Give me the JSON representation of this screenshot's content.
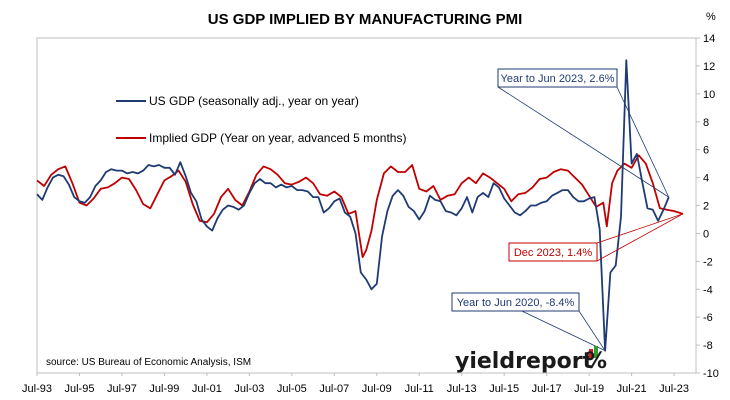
{
  "chart_data": {
    "type": "line",
    "title": "US GDP IMPLIED BY MANUFACTURING PMI",
    "y_unit": "%",
    "ylim": [
      -10,
      14
    ],
    "yticks": [
      14,
      12,
      10,
      8,
      6,
      4,
      2,
      0,
      -2,
      -4,
      -6,
      -8,
      -10
    ],
    "xlim": [
      "1993-07",
      "2024-04"
    ],
    "xticks": [
      "Jul-93",
      "Jul-95",
      "Jul-97",
      "Jul-99",
      "Jul-01",
      "Jul-03",
      "Jul-05",
      "Jul-07",
      "Jul-09",
      "Jul-11",
      "Jul-13",
      "Jul-15",
      "Jul-17",
      "Jul-19",
      "Jul-21",
      "Jul-23"
    ],
    "grid": false,
    "legend_position": "top-left",
    "series": [
      {
        "name": "US GDP (seasonally adj., year on year)",
        "color": "#1f3b73",
        "points": [
          [
            "1993-07",
            2.8
          ],
          [
            "1993-10",
            2.4
          ],
          [
            "1994-01",
            3.3
          ],
          [
            "1994-04",
            4.0
          ],
          [
            "1994-07",
            4.2
          ],
          [
            "1994-10",
            4.1
          ],
          [
            "1995-01",
            3.5
          ],
          [
            "1995-04",
            2.6
          ],
          [
            "1995-07",
            2.3
          ],
          [
            "1995-10",
            2.2
          ],
          [
            "1996-01",
            2.6
          ],
          [
            "1996-04",
            3.4
          ],
          [
            "1996-07",
            3.8
          ],
          [
            "1996-10",
            4.4
          ],
          [
            "1997-01",
            4.6
          ],
          [
            "1997-04",
            4.5
          ],
          [
            "1997-07",
            4.5
          ],
          [
            "1997-10",
            4.3
          ],
          [
            "1998-01",
            4.4
          ],
          [
            "1998-04",
            4.3
          ],
          [
            "1998-07",
            4.5
          ],
          [
            "1998-10",
            4.9
          ],
          [
            "1999-01",
            4.8
          ],
          [
            "1999-04",
            4.9
          ],
          [
            "1999-07",
            4.7
          ],
          [
            "1999-10",
            4.7
          ],
          [
            "2000-01",
            4.2
          ],
          [
            "2000-04",
            5.1
          ],
          [
            "2000-07",
            4.1
          ],
          [
            "2000-10",
            2.9
          ],
          [
            "2001-01",
            2.3
          ],
          [
            "2001-04",
            1.0
          ],
          [
            "2001-07",
            0.5
          ],
          [
            "2001-10",
            0.2
          ],
          [
            "2002-01",
            1.1
          ],
          [
            "2002-04",
            1.7
          ],
          [
            "2002-07",
            2.0
          ],
          [
            "2002-10",
            1.9
          ],
          [
            "2003-01",
            1.7
          ],
          [
            "2003-04",
            2.0
          ],
          [
            "2003-07",
            2.9
          ],
          [
            "2003-10",
            3.6
          ],
          [
            "2004-01",
            3.9
          ],
          [
            "2004-04",
            3.6
          ],
          [
            "2004-07",
            3.6
          ],
          [
            "2004-10",
            3.3
          ],
          [
            "2005-01",
            3.5
          ],
          [
            "2005-04",
            3.3
          ],
          [
            "2005-07",
            3.4
          ],
          [
            "2005-10",
            3.1
          ],
          [
            "2006-01",
            3.1
          ],
          [
            "2006-04",
            3.0
          ],
          [
            "2006-07",
            2.6
          ],
          [
            "2006-10",
            2.6
          ],
          [
            "2007-01",
            1.5
          ],
          [
            "2007-04",
            1.8
          ],
          [
            "2007-07",
            2.3
          ],
          [
            "2007-10",
            2.5
          ],
          [
            "2008-01",
            1.5
          ],
          [
            "2008-04",
            1.2
          ],
          [
            "2008-07",
            0.0
          ],
          [
            "2008-10",
            -2.8
          ],
          [
            "2009-01",
            -3.3
          ],
          [
            "2009-04",
            -4.0
          ],
          [
            "2009-07",
            -3.6
          ],
          [
            "2009-10",
            -0.2
          ],
          [
            "2010-01",
            1.6
          ],
          [
            "2010-04",
            2.7
          ],
          [
            "2010-07",
            3.1
          ],
          [
            "2010-10",
            2.7
          ],
          [
            "2011-01",
            1.9
          ],
          [
            "2011-04",
            1.6
          ],
          [
            "2011-07",
            1.0
          ],
          [
            "2011-10",
            1.6
          ],
          [
            "2012-01",
            2.7
          ],
          [
            "2012-04",
            2.4
          ],
          [
            "2012-07",
            2.3
          ],
          [
            "2012-10",
            1.6
          ],
          [
            "2013-01",
            1.5
          ],
          [
            "2013-04",
            1.3
          ],
          [
            "2013-07",
            1.8
          ],
          [
            "2013-10",
            2.6
          ],
          [
            "2014-01",
            1.5
          ],
          [
            "2014-04",
            2.6
          ],
          [
            "2014-07",
            2.9
          ],
          [
            "2014-10",
            2.6
          ],
          [
            "2015-01",
            3.6
          ],
          [
            "2015-04",
            3.3
          ],
          [
            "2015-07",
            2.5
          ],
          [
            "2015-10",
            2.0
          ],
          [
            "2016-01",
            1.5
          ],
          [
            "2016-04",
            1.3
          ],
          [
            "2016-07",
            1.6
          ],
          [
            "2016-10",
            2.0
          ],
          [
            "2017-01",
            2.0
          ],
          [
            "2017-04",
            2.2
          ],
          [
            "2017-07",
            2.3
          ],
          [
            "2017-10",
            2.7
          ],
          [
            "2018-01",
            2.9
          ],
          [
            "2018-04",
            3.1
          ],
          [
            "2018-07",
            3.1
          ],
          [
            "2018-10",
            2.6
          ],
          [
            "2019-01",
            2.3
          ],
          [
            "2019-04",
            2.3
          ],
          [
            "2019-07",
            2.5
          ],
          [
            "2019-10",
            2.6
          ],
          [
            "2020-01",
            0.3
          ],
          [
            "2020-04",
            -8.4
          ],
          [
            "2020-07",
            -2.8
          ],
          [
            "2020-10",
            -2.3
          ],
          [
            "2021-01",
            1.2
          ],
          [
            "2021-04",
            12.4
          ],
          [
            "2021-07",
            5.0
          ],
          [
            "2021-10",
            5.7
          ],
          [
            "2022-01",
            3.7
          ],
          [
            "2022-04",
            1.8
          ],
          [
            "2022-07",
            1.7
          ],
          [
            "2022-10",
            0.9
          ],
          [
            "2023-01",
            1.7
          ],
          [
            "2023-04",
            2.6
          ]
        ]
      },
      {
        "name": "Implied GDP (Year on year, advanced 5 months)",
        "color": "#c00000",
        "points": [
          [
            "1993-07",
            3.8
          ],
          [
            "1993-11",
            3.4
          ],
          [
            "1994-03",
            4.2
          ],
          [
            "1994-07",
            4.6
          ],
          [
            "1994-11",
            4.8
          ],
          [
            "1995-03",
            3.6
          ],
          [
            "1995-07",
            2.2
          ],
          [
            "1995-11",
            2.0
          ],
          [
            "1996-03",
            2.5
          ],
          [
            "1996-07",
            3.2
          ],
          [
            "1996-11",
            3.3
          ],
          [
            "1997-03",
            3.6
          ],
          [
            "1997-07",
            4.0
          ],
          [
            "1997-11",
            3.9
          ],
          [
            "1998-03",
            3.1
          ],
          [
            "1998-07",
            2.1
          ],
          [
            "1998-11",
            1.8
          ],
          [
            "1999-03",
            2.8
          ],
          [
            "1999-07",
            3.8
          ],
          [
            "1999-11",
            4.1
          ],
          [
            "2000-03",
            4.5
          ],
          [
            "2000-07",
            3.7
          ],
          [
            "2000-11",
            2.1
          ],
          [
            "2001-03",
            0.9
          ],
          [
            "2001-07",
            0.8
          ],
          [
            "2001-11",
            1.4
          ],
          [
            "2002-03",
            2.6
          ],
          [
            "2002-07",
            3.2
          ],
          [
            "2002-11",
            2.4
          ],
          [
            "2003-03",
            2.0
          ],
          [
            "2003-07",
            3.0
          ],
          [
            "2003-11",
            4.2
          ],
          [
            "2004-03",
            4.8
          ],
          [
            "2004-07",
            4.6
          ],
          [
            "2004-11",
            4.2
          ],
          [
            "2005-03",
            3.6
          ],
          [
            "2005-07",
            3.5
          ],
          [
            "2005-11",
            3.7
          ],
          [
            "2006-03",
            4.0
          ],
          [
            "2006-07",
            3.6
          ],
          [
            "2006-11",
            2.8
          ],
          [
            "2007-03",
            2.7
          ],
          [
            "2007-07",
            3.0
          ],
          [
            "2007-11",
            2.6
          ],
          [
            "2008-03",
            1.4
          ],
          [
            "2008-07",
            1.6
          ],
          [
            "2008-11",
            -1.7
          ],
          [
            "2009-01",
            -1.2
          ],
          [
            "2009-04",
            0.2
          ],
          [
            "2009-07",
            2.4
          ],
          [
            "2009-11",
            4.3
          ],
          [
            "2010-03",
            4.8
          ],
          [
            "2010-07",
            4.4
          ],
          [
            "2010-11",
            4.4
          ],
          [
            "2011-03",
            4.9
          ],
          [
            "2011-07",
            3.2
          ],
          [
            "2011-11",
            3.0
          ],
          [
            "2012-03",
            3.4
          ],
          [
            "2012-07",
            2.4
          ],
          [
            "2012-11",
            2.7
          ],
          [
            "2013-03",
            2.8
          ],
          [
            "2013-07",
            3.6
          ],
          [
            "2013-11",
            4.0
          ],
          [
            "2014-03",
            3.6
          ],
          [
            "2014-07",
            4.3
          ],
          [
            "2014-11",
            4.0
          ],
          [
            "2015-03",
            3.6
          ],
          [
            "2015-07",
            3.2
          ],
          [
            "2015-11",
            2.3
          ],
          [
            "2016-03",
            2.8
          ],
          [
            "2016-07",
            2.9
          ],
          [
            "2016-11",
            3.3
          ],
          [
            "2017-03",
            3.9
          ],
          [
            "2017-07",
            4.0
          ],
          [
            "2017-11",
            4.4
          ],
          [
            "2018-03",
            4.6
          ],
          [
            "2018-07",
            4.5
          ],
          [
            "2018-11",
            4.0
          ],
          [
            "2019-03",
            3.5
          ],
          [
            "2019-07",
            2.7
          ],
          [
            "2019-11",
            1.9
          ],
          [
            "2020-03",
            2.2
          ],
          [
            "2020-05",
            0.5
          ],
          [
            "2020-08",
            3.6
          ],
          [
            "2020-11",
            4.5
          ],
          [
            "2021-03",
            5.0
          ],
          [
            "2021-07",
            4.7
          ],
          [
            "2021-11",
            5.6
          ],
          [
            "2022-03",
            5.0
          ],
          [
            "2022-07",
            3.6
          ],
          [
            "2022-11",
            1.8
          ],
          [
            "2023-03",
            1.7
          ],
          [
            "2023-07",
            1.6
          ],
          [
            "2023-12",
            1.4
          ]
        ]
      }
    ],
    "annotations": [
      {
        "text": "Year to Jun 2023, 2.6%",
        "x": "2023-04",
        "y": 2.6,
        "color": "#1f3b73"
      },
      {
        "text": "Dec 2023, 1.4%",
        "x": "2023-12",
        "y": 1.4,
        "color": "#c00000"
      },
      {
        "text": "Year to Jun 2020, -8.4%",
        "x": "2020-04",
        "y": -8.4,
        "color": "#1f3b73"
      }
    ]
  },
  "source_note": "source: US Bureau of Economic Analysis, ISM",
  "brand": {
    "text": "yieldreport",
    "symbol": "%",
    "bar_colors": [
      "#d62020",
      "#2f9e2f"
    ]
  }
}
